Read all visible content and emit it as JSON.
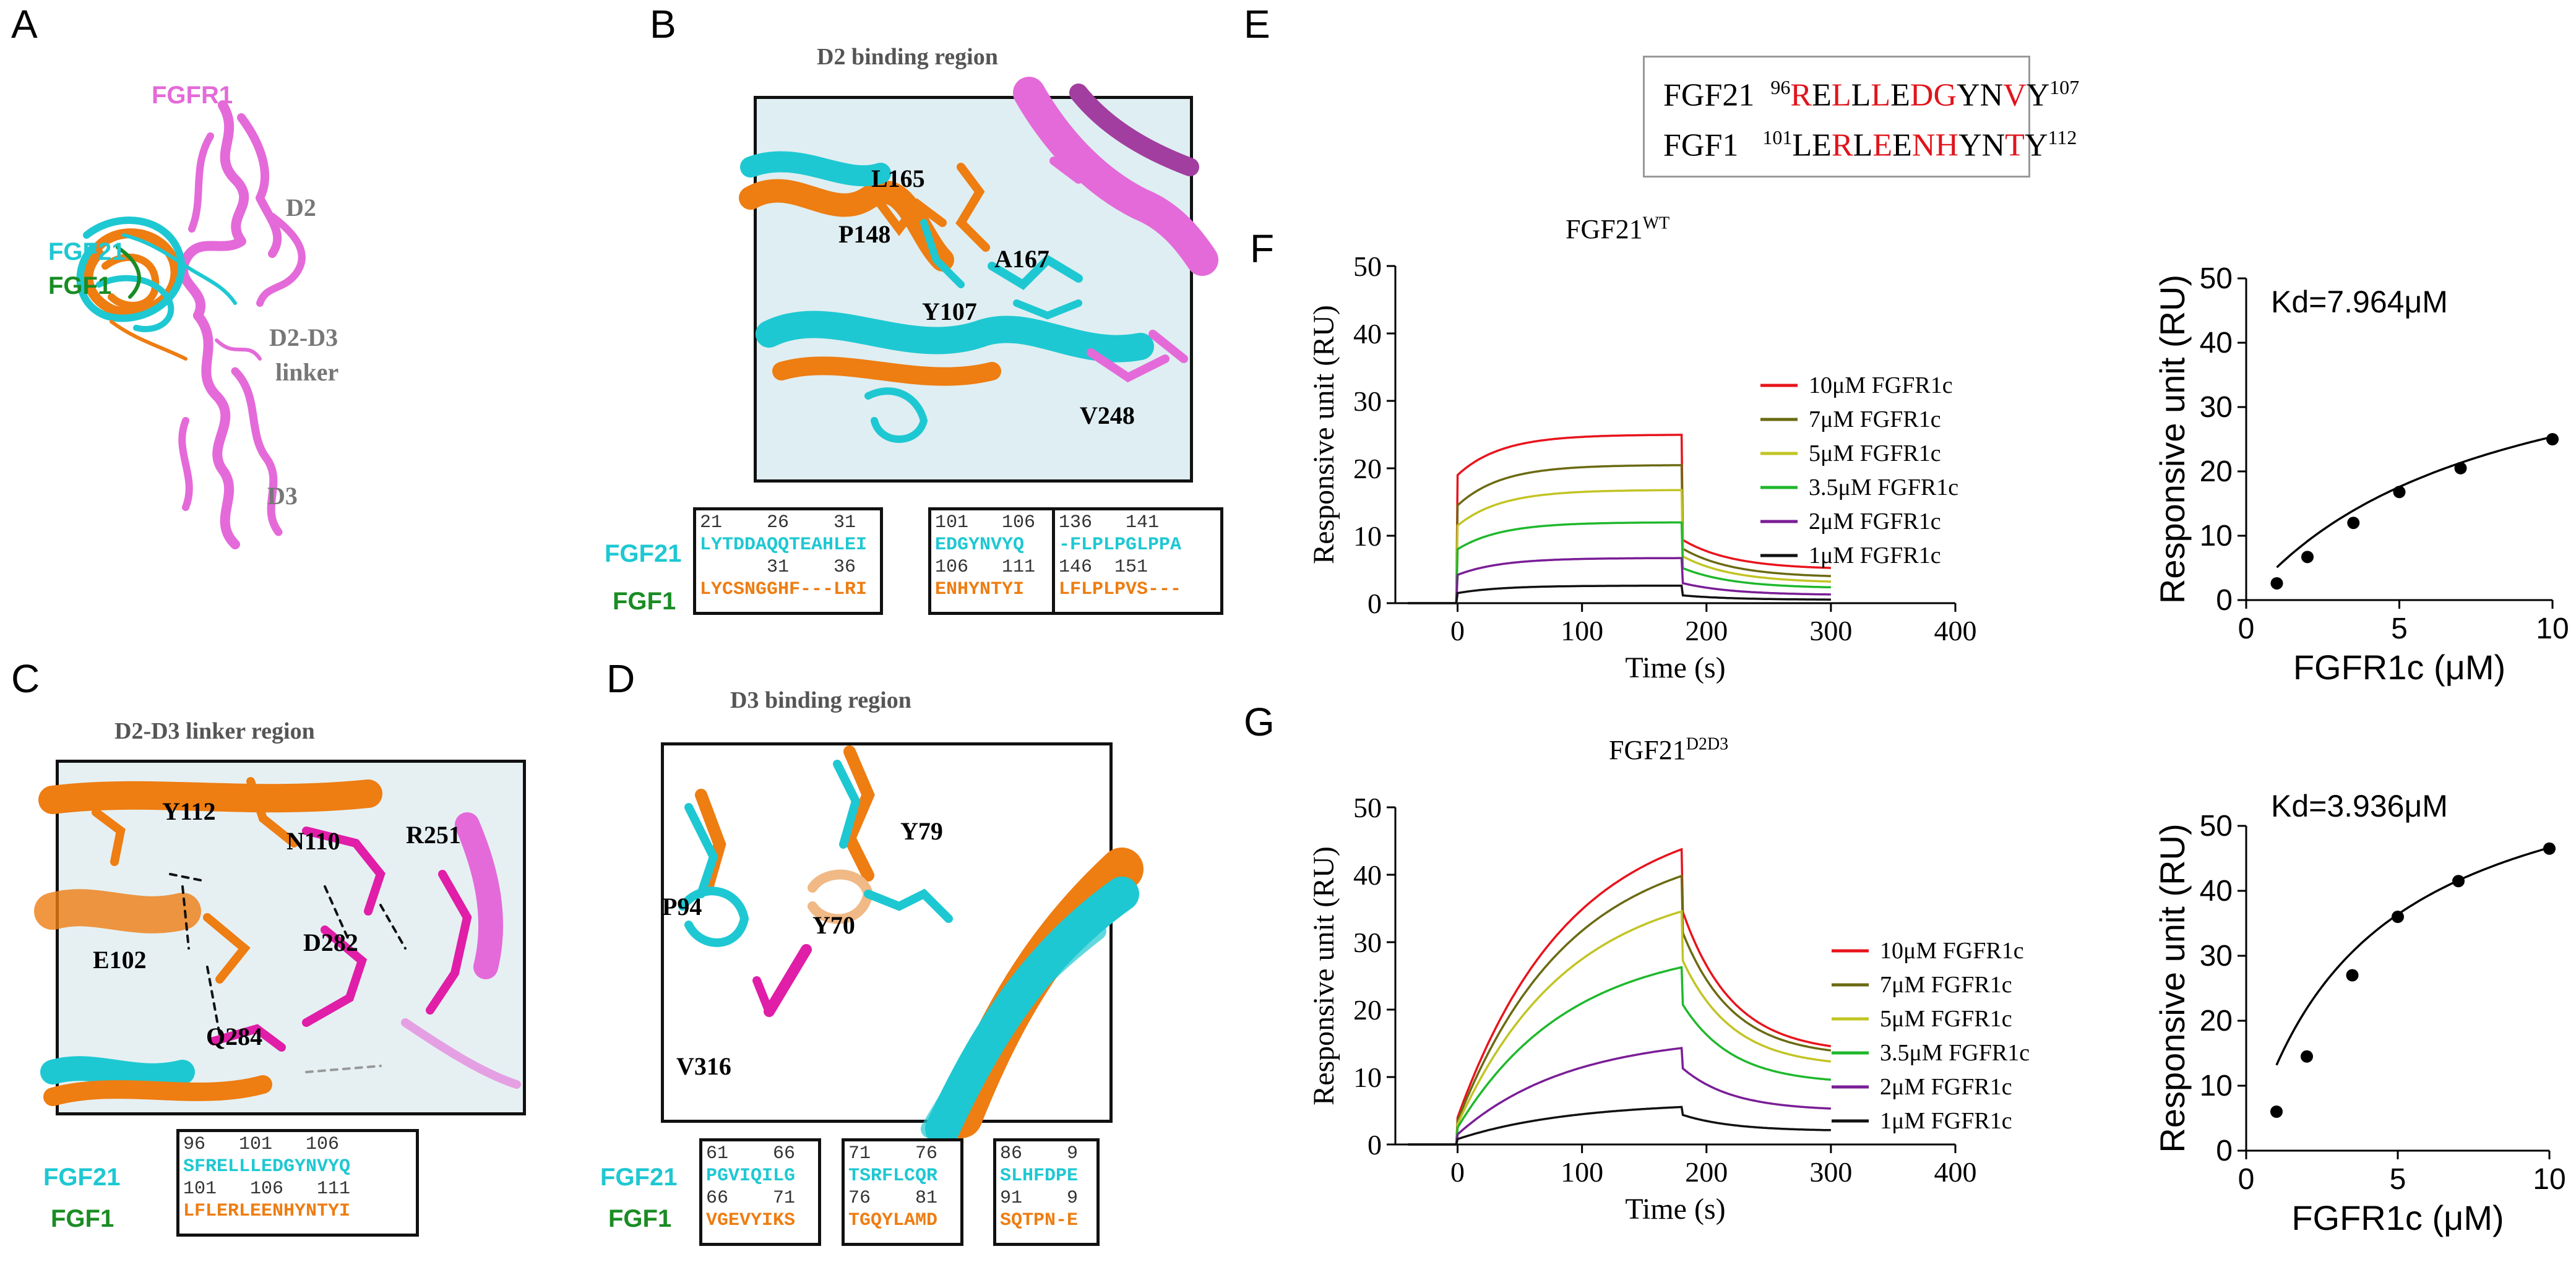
{
  "colors": {
    "fgfr1": "#e46ad9",
    "fgf21": "#1ec8d2",
    "fgf1": "#1a8c24",
    "orange": "#ee7d12",
    "red_res": "#e0141c"
  },
  "panelA": {
    "label": "A",
    "labels": {
      "fgfr1": "FGFR1",
      "d2": "D2",
      "fgf21": "FGF21",
      "fgf1": "FGF1",
      "linker_line1": "D2-D3",
      "linker_line2": "linker",
      "d3": "D3"
    }
  },
  "panelB": {
    "label": "B",
    "title": "D2 binding region",
    "residues": [
      "L165",
      "P148",
      "A167",
      "Y107",
      "V248"
    ],
    "alignment": {
      "row1_label": "FGF21",
      "row2_label": "FGF1",
      "blocks": [
        {
          "num1": "21    26    31",
          "seq1": "LYTDDAQQTEAHLEI",
          "num2": "      31    36",
          "seq2": "LYCSNGGHF---LRI"
        },
        {
          "num1": "101   106",
          "seq1": "EDGYNVYQ",
          "num2": "106   111",
          "seq2": "ENHYNTYI"
        },
        {
          "num1": "136   141",
          "seq1": "-FLPLPGLPPA",
          "num2": "146  151",
          "seq2": "LFLPLPVS---"
        }
      ]
    }
  },
  "panelC": {
    "label": "C",
    "title": "D2-D3 linker region",
    "residues": [
      "Y112",
      "N110",
      "R251",
      "E102",
      "D282",
      "Q284"
    ],
    "alignment": {
      "row1_label": "FGF21",
      "row2_label": "FGF1",
      "blocks": [
        {
          "num1": "96   101   106",
          "seq1": "SFRELLLEDGYNVYQ",
          "num2": "101   106   111",
          "seq2": "LFLERLEENHYNTYI"
        }
      ]
    }
  },
  "panelD": {
    "label": "D",
    "title": "D3 binding region",
    "residues": [
      "Y79",
      "P94",
      "Y70",
      "V316"
    ],
    "alignment": {
      "row1_label": "FGF21",
      "row2_label": "FGF1",
      "blocks": [
        {
          "num1": "61    66",
          "seq1": "PGVIQILG",
          "num2": "66    71",
          "seq2": "VGEVYIKS"
        },
        {
          "num1": "71    76",
          "seq1": "TSRFLCQR",
          "num2": "76    81",
          "seq2": "TGQYLAMD"
        },
        {
          "num1": "86    9",
          "seq1": "SLHFDPE",
          "num2": "91    9",
          "seq2": "SQTPN-E"
        }
      ]
    }
  },
  "panelE": {
    "label": "E",
    "row1": {
      "name": "FGF21",
      "start": "96",
      "end": "107",
      "residues": [
        "R",
        "E",
        "L",
        "L",
        "L",
        "E",
        "D",
        "G",
        "Y",
        "N",
        "V",
        "Y"
      ],
      "red": [
        true,
        false,
        true,
        false,
        true,
        false,
        true,
        true,
        false,
        false,
        true,
        false
      ]
    },
    "row2": {
      "name": "FGF1",
      "start": "101",
      "end": "112",
      "residues": [
        "L",
        "E",
        "R",
        "L",
        "E",
        "E",
        "N",
        "H",
        "Y",
        "N",
        "T",
        "Y"
      ],
      "red": [
        false,
        false,
        true,
        false,
        true,
        false,
        true,
        true,
        false,
        false,
        true,
        false
      ]
    }
  },
  "panelF": {
    "label": "F",
    "title_main": "FGF21",
    "title_sup": "WT",
    "sensorgram": {
      "type": "line",
      "xlabel": "Time (s)",
      "ylabel": "Responsive unit (RU)",
      "xlim": [
        -50,
        400
      ],
      "ylim": [
        0,
        50
      ],
      "xticks": [
        0,
        100,
        200,
        300,
        400
      ],
      "yticks": [
        0,
        10,
        20,
        30,
        40,
        50
      ],
      "inject_start": 0,
      "inject_end": 180,
      "end": 300,
      "series": [
        {
          "name": "10μM FGFR1c",
          "color": "#e8141c",
          "jump": 19.0,
          "plateau": 25.0,
          "tau": 35,
          "dissoc_drop": 0.62,
          "end_value": 5.0
        },
        {
          "name": "7μM FGFR1c",
          "color": "#6b6a12",
          "jump": 14.5,
          "plateau": 20.5,
          "tau": 35,
          "dissoc_drop": 0.6,
          "end_value": 3.8
        },
        {
          "name": "5μM FGFR1c",
          "color": "#c2c424",
          "jump": 11.5,
          "plateau": 16.8,
          "tau": 35,
          "dissoc_drop": 0.58,
          "end_value": 3.0
        },
        {
          "name": "3.5μM FGFR1c",
          "color": "#1fb82c",
          "jump": 8.0,
          "plateau": 12.0,
          "tau": 35,
          "dissoc_drop": 0.56,
          "end_value": 2.2
        },
        {
          "name": "2μM FGFR1c",
          "color": "#7a1e96",
          "jump": 4.2,
          "plateau": 6.7,
          "tau": 35,
          "dissoc_drop": 0.55,
          "end_value": 1.2
        },
        {
          "name": "1μM FGFR1c",
          "color": "#111111",
          "jump": 1.5,
          "plateau": 2.6,
          "tau": 35,
          "dissoc_drop": 0.55,
          "end_value": 0.5
        }
      ]
    },
    "binding": {
      "type": "scatter",
      "kd_text": "Kd=7.964μM",
      "xlabel": "FGFR1c (μM)",
      "ylabel": "Responsive unit (RU)",
      "xlim": [
        0,
        10
      ],
      "ylim": [
        0,
        50
      ],
      "xticks": [
        0,
        5,
        10
      ],
      "yticks": [
        0,
        10,
        20,
        30,
        40,
        50
      ],
      "x": [
        1,
        2,
        3.5,
        5,
        7,
        10
      ],
      "y": [
        2.6,
        6.7,
        12.0,
        16.8,
        20.5,
        25.0
      ],
      "fit_bmax": 45.6,
      "fit_kd": 7.964
    }
  },
  "panelG": {
    "label": "G",
    "title_main": "FGF21",
    "title_sup": "D2D3",
    "sensorgram": {
      "type": "line",
      "xlabel": "Time (s)",
      "ylabel": "Responsive unit (RU)",
      "xlim": [
        -50,
        400
      ],
      "ylim": [
        0,
        50
      ],
      "xticks": [
        0,
        100,
        200,
        300,
        400
      ],
      "yticks": [
        0,
        10,
        20,
        30,
        40,
        50
      ],
      "inject_start": 0,
      "inject_end": 180,
      "end": 300,
      "series": [
        {
          "name": "10μM FGFR1c",
          "color": "#e8141c",
          "jump": 4.0,
          "plateau": 50.0,
          "tau": 90,
          "dissoc_drop": 0.2,
          "end_value": 13.5
        },
        {
          "name": "7μM FGFR1c",
          "color": "#6b6a12",
          "jump": 3.5,
          "plateau": 45.5,
          "tau": 90,
          "dissoc_drop": 0.2,
          "end_value": 13.0
        },
        {
          "name": "5μM FGFR1c",
          "color": "#c2c424",
          "jump": 3.0,
          "plateau": 39.5,
          "tau": 90,
          "dissoc_drop": 0.2,
          "end_value": 11.5
        },
        {
          "name": "3.5μM FGFR1c",
          "color": "#1fb82c",
          "jump": 2.5,
          "plateau": 30.0,
          "tau": 90,
          "dissoc_drop": 0.2,
          "end_value": 9.0
        },
        {
          "name": "2μM FGFR1c",
          "color": "#7a1e96",
          "jump": 1.5,
          "plateau": 16.3,
          "tau": 90,
          "dissoc_drop": 0.2,
          "end_value": 5.0
        },
        {
          "name": "1μM FGFR1c",
          "color": "#111111",
          "jump": 0.8,
          "plateau": 6.3,
          "tau": 90,
          "dissoc_drop": 0.2,
          "end_value": 2.0
        }
      ]
    },
    "binding": {
      "type": "scatter",
      "kd_text": "Kd=3.936μM",
      "xlabel": "FGFR1c (μM)",
      "ylabel": "Responsive unit (RU)",
      "xlim": [
        0,
        10
      ],
      "ylim": [
        0,
        50
      ],
      "xticks": [
        0,
        5,
        10
      ],
      "yticks": [
        0,
        10,
        20,
        30,
        40,
        50
      ],
      "x": [
        1,
        2,
        3.5,
        5,
        7,
        10
      ],
      "y": [
        6.0,
        14.5,
        27.0,
        36.0,
        41.5,
        46.5
      ],
      "fit_bmax": 65.0,
      "fit_kd": 3.936
    }
  },
  "chart_data": [
    {
      "type": "line",
      "title": "FGF21 WT",
      "xlabel": "Time (s)",
      "ylabel": "Responsive unit (RU)",
      "xlim": [
        -50,
        400
      ],
      "ylim": [
        0,
        50
      ],
      "legend": "center-right",
      "series": [
        {
          "name": "10μM FGFR1c",
          "plateau": 25.0
        },
        {
          "name": "7μM FGFR1c",
          "plateau": 20.5
        },
        {
          "name": "5μM FGFR1c",
          "plateau": 16.8
        },
        {
          "name": "3.5μM FGFR1c",
          "plateau": 12.0
        },
        {
          "name": "2μM FGFR1c",
          "plateau": 6.7
        },
        {
          "name": "1μM FGFR1c",
          "plateau": 2.6
        }
      ]
    },
    {
      "type": "scatter",
      "title": "Kd=7.964μM",
      "xlabel": "FGFR1c (μM)",
      "ylabel": "Responsive unit (RU)",
      "x": [
        1,
        2,
        3.5,
        5,
        7,
        10
      ],
      "y": [
        2.6,
        6.7,
        12.0,
        16.8,
        20.5,
        25.0
      ],
      "xlim": [
        0,
        10
      ],
      "ylim": [
        0,
        50
      ]
    },
    {
      "type": "line",
      "title": "FGF21 D2D3",
      "xlabel": "Time (s)",
      "ylabel": "Responsive unit (RU)",
      "xlim": [
        -50,
        400
      ],
      "ylim": [
        0,
        50
      ],
      "legend": "center-right",
      "series": [
        {
          "name": "10μM FGFR1c",
          "peak": 46.5
        },
        {
          "name": "7μM FGFR1c",
          "peak": 41.8
        },
        {
          "name": "5μM FGFR1c",
          "peak": 35.8
        },
        {
          "name": "3.5μM FGFR1c",
          "peak": 26.8
        },
        {
          "name": "2μM FGFR1c",
          "peak": 14.5
        },
        {
          "name": "1μM FGFR1c",
          "peak": 5.6
        }
      ]
    },
    {
      "type": "scatter",
      "title": "Kd=3.936μM",
      "xlabel": "FGFR1c (μM)",
      "ylabel": "Responsive unit (RU)",
      "x": [
        1,
        2,
        3.5,
        5,
        7,
        10
      ],
      "y": [
        6.0,
        14.5,
        27.0,
        36.0,
        41.5,
        46.5
      ],
      "xlim": [
        0,
        10
      ],
      "ylim": [
        0,
        50
      ]
    }
  ]
}
